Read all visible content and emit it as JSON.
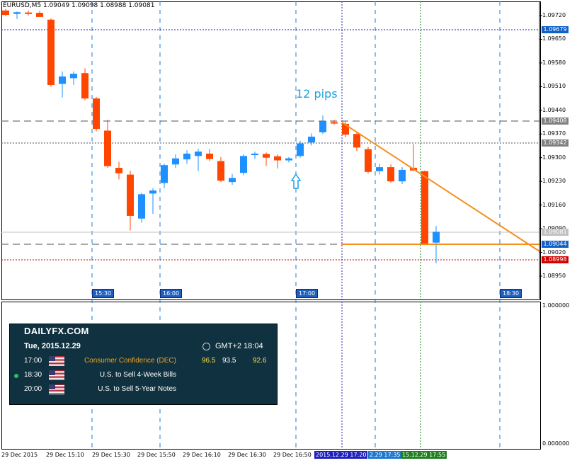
{
  "symbol_header": "EURUSD,M5  1.09049 1.09098 1.08988 1.09081",
  "annotation": "12 pips",
  "colors": {
    "bull": "#1e90ff",
    "bear": "#ff4500",
    "trend": "#f4901e",
    "grid": "#1e78d0",
    "bid_tag": "#c0c0c0",
    "level_tag": "#1060c8",
    "low_tag": "#d00000"
  },
  "price_scale": [
    "1.09720",
    "1.09650",
    "1.09580",
    "1.09510",
    "1.09440",
    "1.09370",
    "1.09300",
    "1.09230",
    "1.09160",
    "1.09090",
    "1.09020",
    "1.08950"
  ],
  "price_tags": {
    "level_high": "1.09679",
    "level_a": "1.09408",
    "level_b": "1.09342",
    "bid": "1.09081",
    "level_c": "1.09044",
    "level_low": "1.08998"
  },
  "time_tags": [
    "15:30",
    "16:00",
    "17:00",
    "18:30"
  ],
  "indicator_scale": {
    "top": "1.000000",
    "bottom": "0.000000"
  },
  "time_axis": {
    "labels": [
      "29 Dec 2015",
      "29 Dec 15:10",
      "29 Dec 15:30",
      "29 Dec 15:50",
      "29 Dec 16:10",
      "29 Dec 16:30",
      "29 Dec 16:50"
    ],
    "highlighted": [
      "2015.12.29 17:20",
      "2.29 17:35",
      "15.12.29 17:55"
    ]
  },
  "candles": [
    {
      "o": 1.09735,
      "h": 1.0974,
      "l": 1.09718,
      "c": 1.09722
    },
    {
      "o": 1.09725,
      "h": 1.09732,
      "l": 1.0971,
      "c": 1.0973
    },
    {
      "o": 1.09729,
      "h": 1.09735,
      "l": 1.0972,
      "c": 1.09725
    },
    {
      "o": 1.09728,
      "h": 1.09734,
      "l": 1.09718,
      "c": 1.09716
    },
    {
      "o": 1.09708,
      "h": 1.09712,
      "l": 1.0951,
      "c": 1.09515
    },
    {
      "o": 1.09518,
      "h": 1.09555,
      "l": 1.09478,
      "c": 1.0954
    },
    {
      "o": 1.09535,
      "h": 1.09555,
      "l": 1.09515,
      "c": 1.09548
    },
    {
      "o": 1.0955,
      "h": 1.09564,
      "l": 1.0947,
      "c": 1.09475
    },
    {
      "o": 1.09475,
      "h": 1.0948,
      "l": 1.09378,
      "c": 1.09385
    },
    {
      "o": 1.0938,
      "h": 1.09412,
      "l": 1.0927,
      "c": 1.09275
    },
    {
      "o": 1.0927,
      "h": 1.09288,
      "l": 1.09236,
      "c": 1.09254
    },
    {
      "o": 1.0925,
      "h": 1.09262,
      "l": 1.09085,
      "c": 1.09128
    },
    {
      "o": 1.0912,
      "h": 1.09196,
      "l": 1.09108,
      "c": 1.09192
    },
    {
      "o": 1.09194,
      "h": 1.0921,
      "l": 1.09134,
      "c": 1.09203
    },
    {
      "o": 1.09225,
      "h": 1.09282,
      "l": 1.0921,
      "c": 1.09278
    },
    {
      "o": 1.0928,
      "h": 1.0931,
      "l": 1.0927,
      "c": 1.09298
    },
    {
      "o": 1.09295,
      "h": 1.09322,
      "l": 1.09282,
      "c": 1.09312
    },
    {
      "o": 1.09305,
      "h": 1.09326,
      "l": 1.0926,
      "c": 1.09318
    },
    {
      "o": 1.09312,
      "h": 1.09326,
      "l": 1.0929,
      "c": 1.09296
    },
    {
      "o": 1.0929,
      "h": 1.09302,
      "l": 1.09228,
      "c": 1.09232
    },
    {
      "o": 1.09228,
      "h": 1.09252,
      "l": 1.0922,
      "c": 1.0924
    },
    {
      "o": 1.09255,
      "h": 1.0931,
      "l": 1.09248,
      "c": 1.09305
    },
    {
      "o": 1.09308,
      "h": 1.09318,
      "l": 1.09296,
      "c": 1.09312
    },
    {
      "o": 1.09311,
      "h": 1.09315,
      "l": 1.09276,
      "c": 1.093
    },
    {
      "o": 1.09304,
      "h": 1.0931,
      "l": 1.09268,
      "c": 1.09292
    },
    {
      "o": 1.09292,
      "h": 1.09302,
      "l": 1.09286,
      "c": 1.09298
    },
    {
      "o": 1.09305,
      "h": 1.0935,
      "l": 1.093,
      "c": 1.09342
    },
    {
      "o": 1.09345,
      "h": 1.09372,
      "l": 1.09336,
      "c": 1.09362
    },
    {
      "o": 1.09375,
      "h": 1.09425,
      "l": 1.0937,
      "c": 1.09408
    },
    {
      "o": 1.09405,
      "h": 1.09412,
      "l": 1.09398,
      "c": 1.09402
    },
    {
      "o": 1.094,
      "h": 1.09408,
      "l": 1.0936,
      "c": 1.09368
    },
    {
      "o": 1.0937,
      "h": 1.09378,
      "l": 1.0932,
      "c": 1.0933
    },
    {
      "o": 1.09325,
      "h": 1.09332,
      "l": 1.09254,
      "c": 1.09258
    },
    {
      "o": 1.0926,
      "h": 1.09282,
      "l": 1.0925,
      "c": 1.09272
    },
    {
      "o": 1.09272,
      "h": 1.0928,
      "l": 1.09226,
      "c": 1.0923
    },
    {
      "o": 1.0923,
      "h": 1.09272,
      "l": 1.09222,
      "c": 1.09264
    },
    {
      "o": 1.0927,
      "h": 1.0934,
      "l": 1.0926,
      "c": 1.09262
    },
    {
      "o": 1.0926,
      "h": 1.09262,
      "l": 1.09044,
      "c": 1.09044
    },
    {
      "o": 1.09049,
      "h": 1.09098,
      "l": 1.08988,
      "c": 1.09081
    }
  ],
  "calendar": {
    "logo_a": "DAILY",
    "logo_b": "FX",
    "logo_c": ".COM",
    "date": "Tue, 2015.12.29",
    "timezone": "GMT+2 18:04",
    "events": [
      {
        "time": "17:00",
        "title": "Consumer Confidence (DEC)",
        "actual": "96.5",
        "forecast": "93.5",
        "previous": "92.6"
      },
      {
        "time": "18:30",
        "title": "U.S. to Sell 4-Week Bills",
        "actual": "",
        "forecast": "",
        "previous": ""
      },
      {
        "time": "20:00",
        "title": "U.S. to Sell 5-Year Notes",
        "actual": "",
        "forecast": "",
        "previous": ""
      }
    ]
  }
}
